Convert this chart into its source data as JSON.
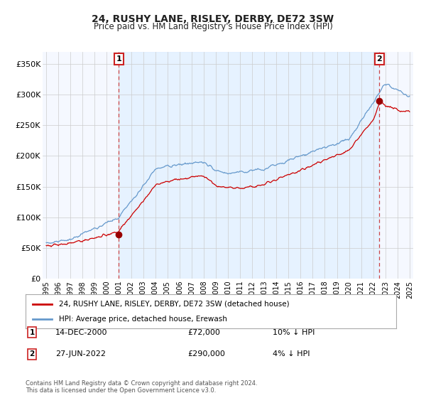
{
  "title": "24, RUSHY LANE, RISLEY, DERBY, DE72 3SW",
  "subtitle": "Price paid vs. HM Land Registry's House Price Index (HPI)",
  "title_fontsize": 10,
  "subtitle_fontsize": 8.5,
  "background_color": "#ffffff",
  "plot_bg_color": "#f5f8ff",
  "grid_color": "#cccccc",
  "hpi_color": "#6699cc",
  "price_color": "#cc0000",
  "marker_color": "#990000",
  "annotation_box_color": "#cc2222",
  "dashed_line_color1": "#cc4444",
  "dashed_line_color2": "#cc4444",
  "shade_color": "#ddeeff",
  "ylim": [
    0,
    370000
  ],
  "yticks": [
    0,
    50000,
    100000,
    150000,
    200000,
    250000,
    300000,
    350000
  ],
  "ytick_labels": [
    "£0",
    "£50K",
    "£100K",
    "£150K",
    "£200K",
    "£250K",
    "£300K",
    "£350K"
  ],
  "xmin": 1994.7,
  "xmax": 2025.3,
  "legend_label_price": "24, RUSHY LANE, RISLEY, DERBY, DE72 3SW (detached house)",
  "legend_label_hpi": "HPI: Average price, detached house, Erewash",
  "transaction1_label": "1",
  "transaction1_date": "14-DEC-2000",
  "transaction1_price": "£72,000",
  "transaction1_note": "10% ↓ HPI",
  "transaction1_x": 2001.0,
  "transaction1_y": 72000,
  "transaction2_label": "2",
  "transaction2_date": "27-JUN-2022",
  "transaction2_price": "£290,000",
  "transaction2_note": "4% ↓ HPI",
  "transaction2_x": 2022.5,
  "transaction2_y": 290000,
  "footer1": "Contains HM Land Registry data © Crown copyright and database right 2024.",
  "footer2": "This data is licensed under the Open Government Licence v3.0."
}
